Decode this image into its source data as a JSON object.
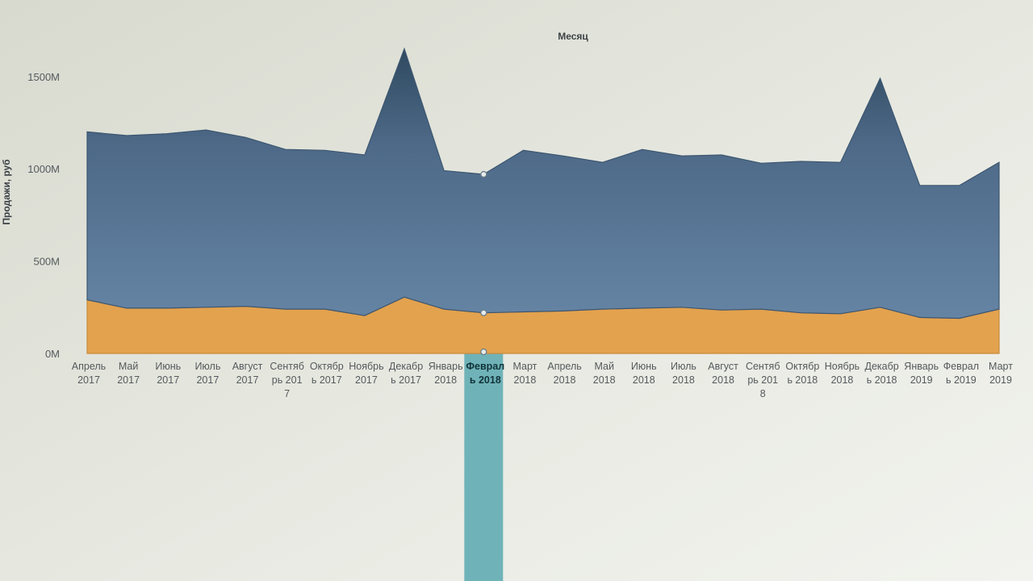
{
  "chart_data": {
    "type": "area",
    "stacked": true,
    "title": "Месяц",
    "xlabel": "",
    "ylabel": "Продажи, руб",
    "ylim": [
      0,
      1700
    ],
    "yticks": [
      {
        "value": 0,
        "label": "0M"
      },
      {
        "value": 500,
        "label": "500M"
      },
      {
        "value": 1000,
        "label": "1000M"
      },
      {
        "value": 1500,
        "label": "1500M"
      }
    ],
    "grid": false,
    "legend": "none",
    "categories": [
      [
        "Апрель",
        "2017"
      ],
      [
        "Май",
        "2017"
      ],
      [
        "Июнь",
        "2017"
      ],
      [
        "Июль",
        "2017"
      ],
      [
        "Август",
        "2017"
      ],
      [
        "Сентяб",
        "рь 201",
        "7"
      ],
      [
        "Октябр",
        "ь 2017"
      ],
      [
        "Ноябрь",
        "2017"
      ],
      [
        "Декабр",
        "ь 2017"
      ],
      [
        "Январь",
        "2018"
      ],
      [
        "Феврал",
        "ь 2018"
      ],
      [
        "Март",
        "2018"
      ],
      [
        "Апрель",
        "2018"
      ],
      [
        "Май",
        "2018"
      ],
      [
        "Июнь",
        "2018"
      ],
      [
        "Июль",
        "2018"
      ],
      [
        "Август",
        "2018"
      ],
      [
        "Сентяб",
        "рь 201",
        "8"
      ],
      [
        "Октябр",
        "ь 2018"
      ],
      [
        "Ноябрь",
        "2018"
      ],
      [
        "Декабр",
        "ь 2018"
      ],
      [
        "Январь",
        "2019"
      ],
      [
        "Феврал",
        "ь 2019"
      ],
      [
        "Март",
        "2019"
      ]
    ],
    "series": [
      {
        "color": "#e3a24e",
        "values": [
          290,
          245,
          245,
          250,
          255,
          240,
          240,
          205,
          305,
          240,
          220,
          225,
          230,
          240,
          245,
          250,
          235,
          240,
          220,
          215,
          250,
          195,
          190,
          240
        ]
      },
      {
        "color": "#5c7a9a",
        "values": [
          910,
          935,
          945,
          960,
          915,
          865,
          860,
          870,
          1345,
          750,
          750,
          875,
          840,
          795,
          860,
          820,
          840,
          790,
          820,
          820,
          1240,
          715,
          720,
          795
        ]
      }
    ],
    "totals": [
      1200,
      1180,
      1190,
      1210,
      1170,
      1105,
      1100,
      1075,
      1650,
      990,
      970,
      1100,
      1070,
      1035,
      1105,
      1070,
      1075,
      1030,
      1040,
      1035,
      1490,
      910,
      910,
      1035
    ],
    "highlighted_category": 10,
    "highlight_color": "#6fb3b8"
  }
}
